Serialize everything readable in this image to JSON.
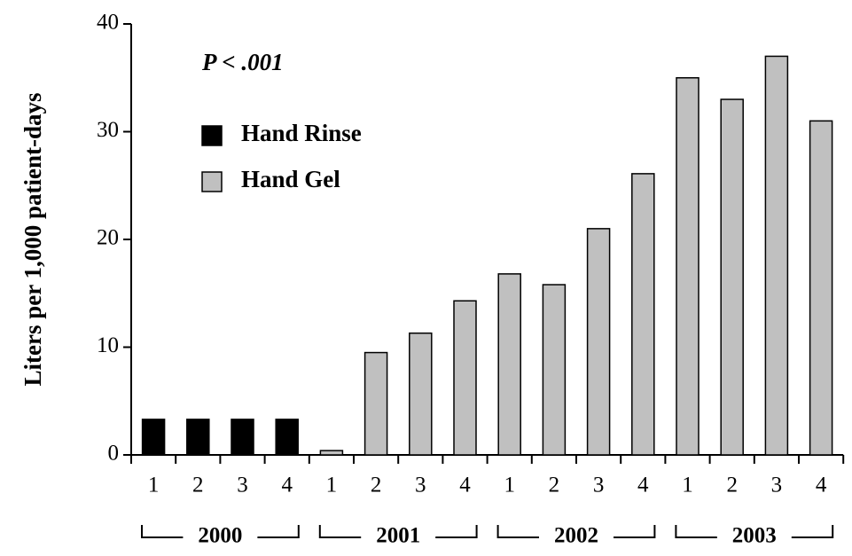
{
  "chart_data": {
    "type": "bar",
    "y_label": "Liters per 1,000 patient-days",
    "annotation": "P < .001",
    "categories": [
      "1",
      "2",
      "3",
      "4",
      "1",
      "2",
      "3",
      "4",
      "1",
      "2",
      "3",
      "4",
      "1",
      "2",
      "3",
      "4"
    ],
    "year_groups": [
      "2000",
      "2001",
      "2002",
      "2003"
    ],
    "series": [
      {
        "name": "Hand Rinse",
        "color": "#000000",
        "values": [
          3.3,
          3.3,
          3.3,
          3.3,
          null,
          null,
          null,
          null,
          null,
          null,
          null,
          null,
          null,
          null,
          null,
          null
        ]
      },
      {
        "name": "Hand Gel",
        "color": "#c0c0c0",
        "values": [
          null,
          null,
          null,
          null,
          0.4,
          9.5,
          11.3,
          14.3,
          16.8,
          15.8,
          21,
          26.1,
          35,
          33,
          37,
          31
        ]
      }
    ],
    "ylim": [
      0,
      40
    ],
    "yticks": [
      0,
      10,
      20,
      30,
      40
    ],
    "legend": "upper left"
  }
}
